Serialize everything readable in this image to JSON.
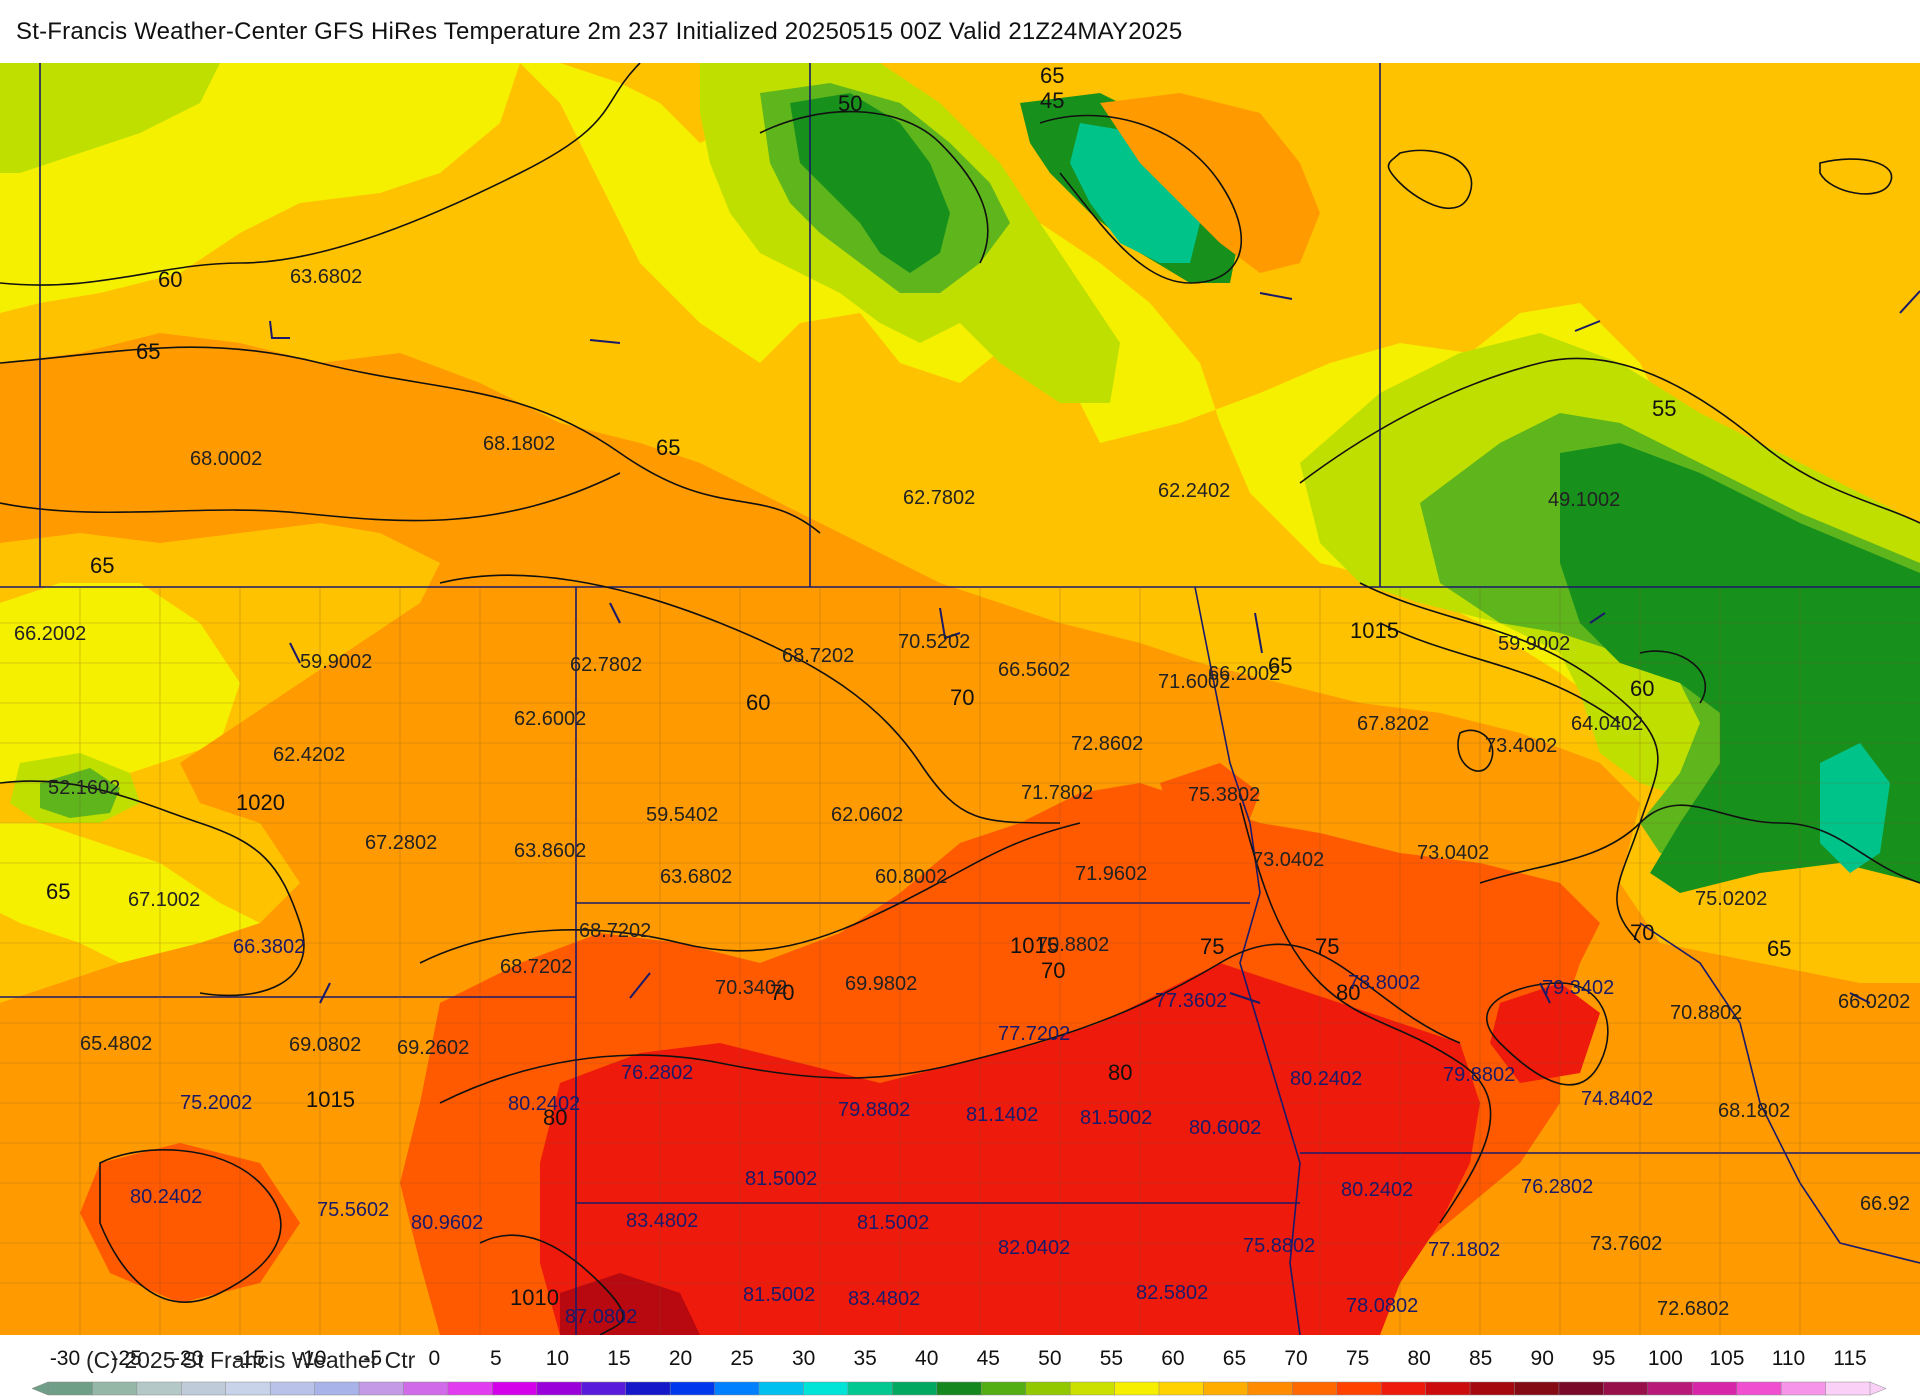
{
  "title": "St-Francis Weather-Center GFS HiRes Temperature 2m  237 Initialized 20250515 00Z Valid 21Z24MAY2025",
  "copyright": "(C) 2025 St Francis Weather Ctr",
  "colors": {
    "t45": "#00c38a",
    "t50": "#18901c",
    "t55": "#5eb61c",
    "t60": "#bfdf00",
    "t65": "#f5ef00",
    "t70": "#ffc200",
    "t75": "#ff9a00",
    "t80": "#ff5a00",
    "t85": "#ee1a0c",
    "t90": "#b80810",
    "outline": "#1a1a6a",
    "isotherm": "#111111"
  },
  "legend": {
    "ticks": [
      "-30",
      "-25",
      "-20",
      "-15",
      "-10",
      "-5",
      "0",
      "5",
      "10",
      "15",
      "20",
      "25",
      "30",
      "35",
      "40",
      "45",
      "50",
      "55",
      "60",
      "65",
      "70",
      "75",
      "80",
      "85",
      "90",
      "95",
      "100",
      "105",
      "110",
      "115"
    ],
    "colors": [
      "#6f9f86",
      "#95b7a8",
      "#b4c8c8",
      "#bfcbd9",
      "#c8d3ea",
      "#b9c3ea",
      "#a8b3ea",
      "#c49ae6",
      "#d16ae8",
      "#e23cf0",
      "#d400ea",
      "#9a00da",
      "#5a1adc",
      "#1418c8",
      "#0038ee",
      "#0080ff",
      "#00c0f0",
      "#00e4d8",
      "#00c890",
      "#00a860",
      "#14881e",
      "#52ae12",
      "#92c800",
      "#cce000",
      "#f6ef00",
      "#ffd200",
      "#ffae00",
      "#ff8c00",
      "#ff6800",
      "#ff4200",
      "#ee1a0c",
      "#cc0c0c",
      "#a60810",
      "#840a14",
      "#7a0828",
      "#98104a",
      "#b81878",
      "#d826a8",
      "#f050d0",
      "#f594e8",
      "#fad0f6"
    ]
  },
  "isotherm_labels": [
    "65",
    "50",
    "45",
    "60",
    "65",
    "65",
    "65",
    "55",
    "60",
    "60",
    "1015",
    "65",
    "70",
    "70",
    "75",
    "75",
    "65",
    "70",
    "1020",
    "65",
    "1015",
    "80",
    "70",
    "1015",
    "80",
    "1010",
    "80"
  ],
  "value_labels": [
    "63.6802",
    "68.0002",
    "68.1802",
    "62.7802",
    "62.2402",
    "49.1002",
    "66.2002",
    "59.9002",
    "62.7802",
    "68.7202",
    "70.5202",
    "66.5602",
    "71.6002",
    "66.2002",
    "59.9002",
    "62.6002",
    "62.4202",
    "67.8202",
    "64.0402",
    "72.8602",
    "52.1602",
    "59.5402",
    "62.0602",
    "71.7802",
    "75.3802",
    "73.4002",
    "67.2802",
    "63.8602",
    "60.8002",
    "63.6802",
    "73.0402",
    "73.0402",
    "67.1002",
    "71.9602",
    "75.0202",
    "68.7202",
    "70.8802",
    "66.3802",
    "78.8002",
    "68.7202",
    "70.3402",
    "69.9802",
    "77.3602",
    "79.3402",
    "70.8802",
    "66.0202",
    "65.4802",
    "69.0802",
    "69.2602",
    "77.7202",
    "76.2802",
    "80.2402",
    "79.8802",
    "74.8402",
    "75.2002",
    "80.2402",
    "79.8802",
    "81.1402",
    "81.5002",
    "80.6002",
    "68.1802",
    "80.2402",
    "81.5002",
    "80.2402",
    "76.2802",
    "75.5602",
    "80.9602",
    "83.4802",
    "81.5002",
    "66.92",
    "82.0402",
    "75.8802",
    "77.1802",
    "73.7602",
    "81.5002",
    "83.4802",
    "82.5802",
    "78.0802",
    "72.6802",
    "87.0802"
  ]
}
